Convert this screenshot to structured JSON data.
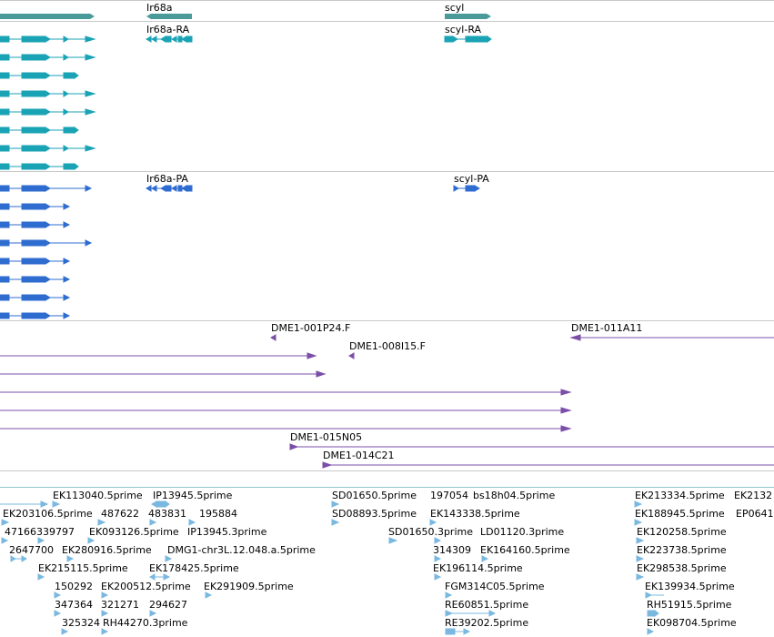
{
  "colors": {
    "gene": "#4a9a9a",
    "transcript": "#1aa3b5",
    "protein": "#2f6cd0",
    "clone": "#7b4fa8",
    "est": "#7ab8e0"
  },
  "genes": {
    "g1": "Ir68a",
    "g2": "scyl"
  },
  "transcripts": {
    "t1": "Ir68a-RA",
    "t2": "scyl-RA"
  },
  "proteins": {
    "p1": "Ir68a-PA",
    "p2": "scyl-PA"
  },
  "clones": {
    "c1": "DME1-001P24.F",
    "c2": "DME1-011A11",
    "c3": "DME1-008I15.F",
    "c4": "DME1-015N05",
    "c5": "DME1-014C21"
  },
  "ests": [
    "EK113040.5prime",
    "IP13945.5prime",
    "SD01650.5prime",
    "197054",
    "bs18h04.5prime",
    "EK213334.5prime",
    "EK2132",
    "EK203106.5prime",
    "487622",
    "483831",
    "195884",
    "SD08893.5prime",
    "EK143338.5prime",
    "EK188945.5prime",
    "EP0641",
    "47166339797",
    "EK093126.5prime",
    "IP13945.3prime",
    "SD01650.3prime",
    "LD01120.3prime",
    "EK120258.5prime",
    "2647700",
    "EK280916.5prime",
    "DMG1-chr3L.12.048.a.5prime",
    "314309",
    "EK164160.5prime",
    "EK223738.5prime",
    "EK215115.5prime",
    "EK178425.5prime",
    "EK196114.5prime",
    "EK298538.5prime",
    "150292",
    "EK200512.5prime",
    "EK291909.5prime",
    "FGM314C05.5prime",
    "EK139934.5prime",
    "347364",
    "321271",
    "294627",
    "RE60851.5prime",
    "RH51915.5prime",
    "325324",
    "RH44270.3prime",
    "RE39202.5prime",
    "EK098704.5prime"
  ]
}
